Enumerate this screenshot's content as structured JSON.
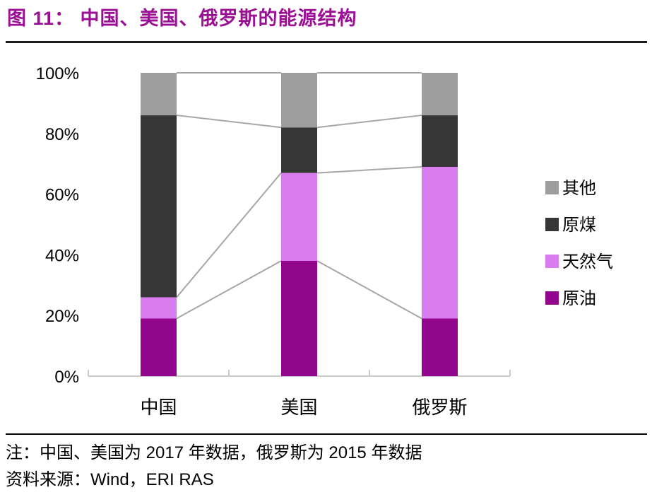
{
  "header": {
    "title": "图 11：  中国、美国、俄罗斯的能源结构"
  },
  "chart_data": {
    "type": "bar",
    "stacked": true,
    "title": "中国、美国、俄罗斯的能源结构",
    "categories": [
      "中国",
      "美国",
      "俄罗斯"
    ],
    "series": [
      {
        "name": "原油",
        "color": "#92068E",
        "values": [
          19,
          38,
          19
        ]
      },
      {
        "name": "天然气",
        "color": "#D87CF0",
        "values": [
          7,
          29,
          50
        ]
      },
      {
        "name": "原煤",
        "color": "#363636",
        "values": [
          60,
          15,
          17
        ]
      },
      {
        "name": "其他",
        "color": "#9D9D9D",
        "values": [
          14,
          18,
          14
        ]
      }
    ],
    "units": "%",
    "ylim": [
      0,
      100
    ],
    "y_ticks": [
      0,
      20,
      40,
      60,
      80,
      100
    ],
    "y_tick_suffix": "%",
    "xlabel": "",
    "ylabel": "",
    "grid": false,
    "legend_position": "right",
    "legend_order": [
      "其他",
      "原煤",
      "天然气",
      "原油"
    ],
    "series_lines": true
  },
  "notes": {
    "note": "注：中国、美国为 2017 年数据，俄罗斯为 2015 年数据",
    "source": "资料来源：Wind，ERI RAS"
  },
  "colors": {
    "title": "#9A0F94",
    "divider_top": "#1A1A1A",
    "divider_bottom": "#000000",
    "axis_line": "#C9C9C9",
    "series_line": "#A6A6A6",
    "text": "#000000"
  }
}
